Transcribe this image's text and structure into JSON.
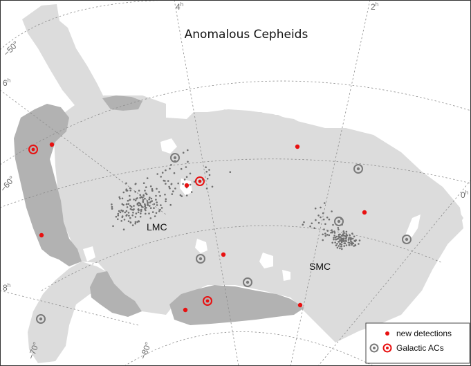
{
  "title": "Anomalous Cepheids",
  "ra_labels": [
    {
      "text": "4h",
      "h": "4",
      "sup": "h"
    },
    {
      "text": "2h",
      "h": "2",
      "sup": "h"
    },
    {
      "text": "6h",
      "h": "6",
      "sup": "h"
    },
    {
      "text": "0h",
      "h": "0",
      "sup": "h"
    },
    {
      "text": "8h",
      "h": "8",
      "sup": "h"
    }
  ],
  "dec_labels": [
    "−50°",
    "−60°",
    "−70°",
    "−80°"
  ],
  "galaxy_labels": {
    "lmc": "LMC",
    "smc": "SMC"
  },
  "legend": {
    "new": "new detections",
    "galactic": "Galactic ACs"
  },
  "colors": {
    "survey_light": "#dcdcdc",
    "survey_dark": "#b2b2b2",
    "lmc_smc_stars": "#707070",
    "new_detection": "#e81010",
    "galactic_gray": "#7a7a7a",
    "galactic_red": "#e81010"
  },
  "marker_counts": {
    "new_detections": 10,
    "galactic_gray": 8,
    "galactic_red": 3
  }
}
